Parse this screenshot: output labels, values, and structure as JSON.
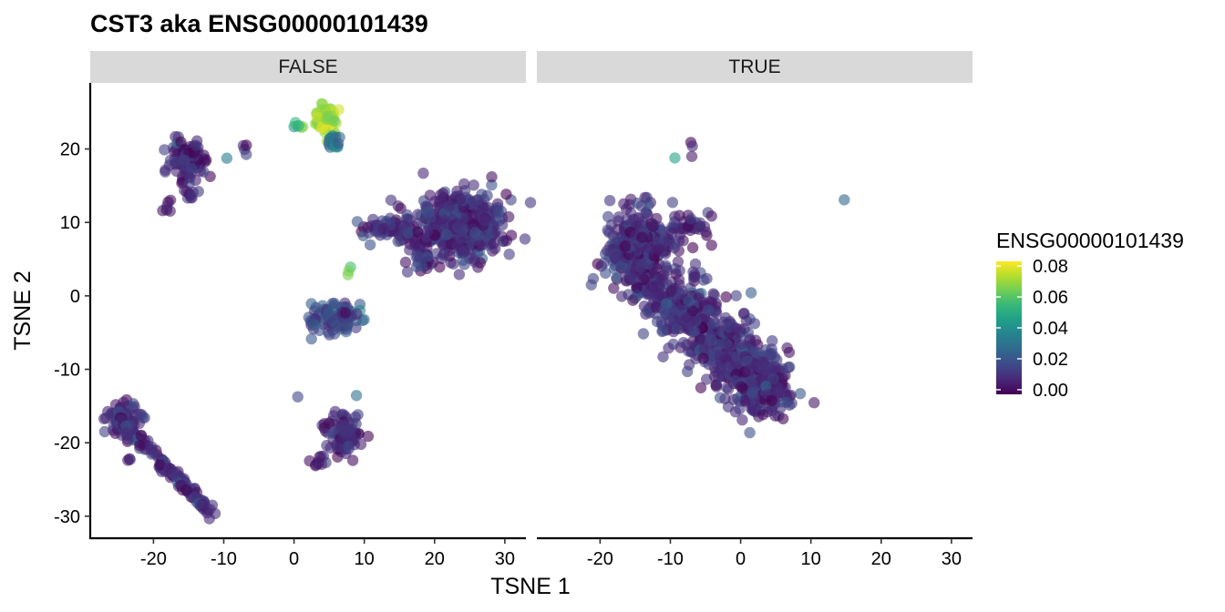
{
  "chart_data": {
    "type": "scatter",
    "title": "CST3  aka ENSG00000101439",
    "xlabel": "TSNE 1",
    "ylabel": "TSNE 2",
    "xlim": [
      -29,
      33
    ],
    "ylim": [
      -33,
      29
    ],
    "x_ticks": [
      -20,
      -10,
      0,
      10,
      20,
      30
    ],
    "y_ticks": [
      -30,
      -20,
      -10,
      0,
      10,
      20
    ],
    "grid": false,
    "legend": {
      "title": "ENSG00000101439",
      "position": "right",
      "range": [
        -0.003,
        0.083
      ],
      "ticks": [
        0.0,
        0.02,
        0.04,
        0.06,
        0.08
      ],
      "tick_labels": [
        "0.00",
        "0.02",
        "0.04",
        "0.06",
        "0.08"
      ],
      "colormap": "viridis"
    },
    "panels": [
      {
        "label": "FALSE",
        "clusters": [
          {
            "center": [
              23.5,
              9.5
            ],
            "spread": [
              4.5,
              3.2
            ],
            "n": 420,
            "value": 0.008
          },
          {
            "center": [
              13.5,
              9.0
            ],
            "spread": [
              2.5,
              1.3
            ],
            "n": 70,
            "value": 0.008
          },
          {
            "center": [
              18.5,
              5.0
            ],
            "spread": [
              1.5,
              1.2
            ],
            "n": 25,
            "value": 0.007
          },
          {
            "center": [
              -15.0,
              18.5
            ],
            "spread": [
              1.8,
              1.9
            ],
            "n": 110,
            "value": 0.006
          },
          {
            "center": [
              -14.5,
              14.0
            ],
            "spread": [
              0.9,
              0.7
            ],
            "n": 10,
            "value": 0.006
          },
          {
            "center": [
              -18.0,
              12.2
            ],
            "spread": [
              0.5,
              0.5
            ],
            "n": 6,
            "value": 0.003
          },
          {
            "center": [
              -7.0,
              20.2
            ],
            "spread": [
              0.3,
              0.7
            ],
            "n": 4,
            "value": 0.0
          },
          {
            "center": [
              -9.5,
              18.7
            ],
            "spread": [
              0.1,
              0.1
            ],
            "n": 1,
            "value": 0.04
          },
          {
            "center": [
              4.5,
              24.0
            ],
            "spread": [
              1.2,
              1.4
            ],
            "n": 70,
            "value": 0.072
          },
          {
            "center": [
              5.5,
              21.0
            ],
            "spread": [
              0.8,
              0.8
            ],
            "n": 15,
            "value": 0.03
          },
          {
            "center": [
              0.7,
              23.0
            ],
            "spread": [
              0.6,
              0.6
            ],
            "n": 6,
            "value": 0.058
          },
          {
            "center": [
              8.0,
              3.3
            ],
            "spread": [
              0.2,
              0.5
            ],
            "n": 3,
            "value": 0.065
          },
          {
            "center": [
              6.0,
              -3.0
            ],
            "spread": [
              2.3,
              1.6
            ],
            "n": 110,
            "value": 0.018
          },
          {
            "center": [
              7.3,
              -18.8
            ],
            "spread": [
              1.8,
              1.8
            ],
            "n": 95,
            "value": 0.006
          },
          {
            "center": [
              3.5,
              -22.5
            ],
            "spread": [
              1.2,
              0.5
            ],
            "n": 10,
            "value": 0.003
          },
          {
            "center": [
              0.5,
              -13.8
            ],
            "spread": [
              0.1,
              0.1
            ],
            "n": 1,
            "value": 0.013
          },
          {
            "center": [
              9.0,
              -13.5
            ],
            "spread": [
              0.1,
              0.1
            ],
            "n": 1,
            "value": 0.035
          },
          {
            "center": [
              -24.5,
              -16.5
            ],
            "spread": [
              1.5,
              1.5
            ],
            "n": 70,
            "value": 0.01
          },
          {
            "line": [
              [
                -25.0,
                -16.5
              ],
              [
                -11.5,
                -30.0
              ]
            ],
            "width": 0.8,
            "n": 140,
            "value": 0.008
          },
          {
            "center": [
              -23.5,
              -22.3
            ],
            "spread": [
              0.4,
              0.3
            ],
            "n": 3,
            "value": 0.0
          }
        ]
      },
      {
        "label": "TRUE",
        "clusters": [
          {
            "line": [
              [
                -18.5,
                7.0
              ],
              [
                4.5,
                -13.0
              ]
            ],
            "width": 4.5,
            "n": 700,
            "value": 0.009
          },
          {
            "center": [
              -14.0,
              8.0
            ],
            "spread": [
              3.0,
              2.8
            ],
            "n": 150,
            "value": 0.008
          },
          {
            "center": [
              3.5,
              -13.0
            ],
            "spread": [
              2.5,
              2.5
            ],
            "n": 120,
            "value": 0.008
          },
          {
            "center": [
              -7.5,
              9.5
            ],
            "spread": [
              2.5,
              1.5
            ],
            "n": 40,
            "value": 0.004
          },
          {
            "center": [
              -7.0,
              19.8
            ],
            "spread": [
              0.3,
              0.8
            ],
            "n": 3,
            "value": 0.002
          },
          {
            "center": [
              -9.5,
              18.7
            ],
            "spread": [
              0.1,
              0.1
            ],
            "n": 1,
            "value": 0.04
          },
          {
            "center": [
              14.8,
              13.0
            ],
            "spread": [
              0.1,
              0.1
            ],
            "n": 1,
            "value": 0.022
          },
          {
            "center": [
              10.5,
              -14.5
            ],
            "spread": [
              0.1,
              0.1
            ],
            "n": 1,
            "value": 0.0
          },
          {
            "center": [
              -5.5,
              -12.5
            ],
            "spread": [
              0.1,
              0.1
            ],
            "n": 1,
            "value": 0.0
          }
        ]
      }
    ]
  }
}
